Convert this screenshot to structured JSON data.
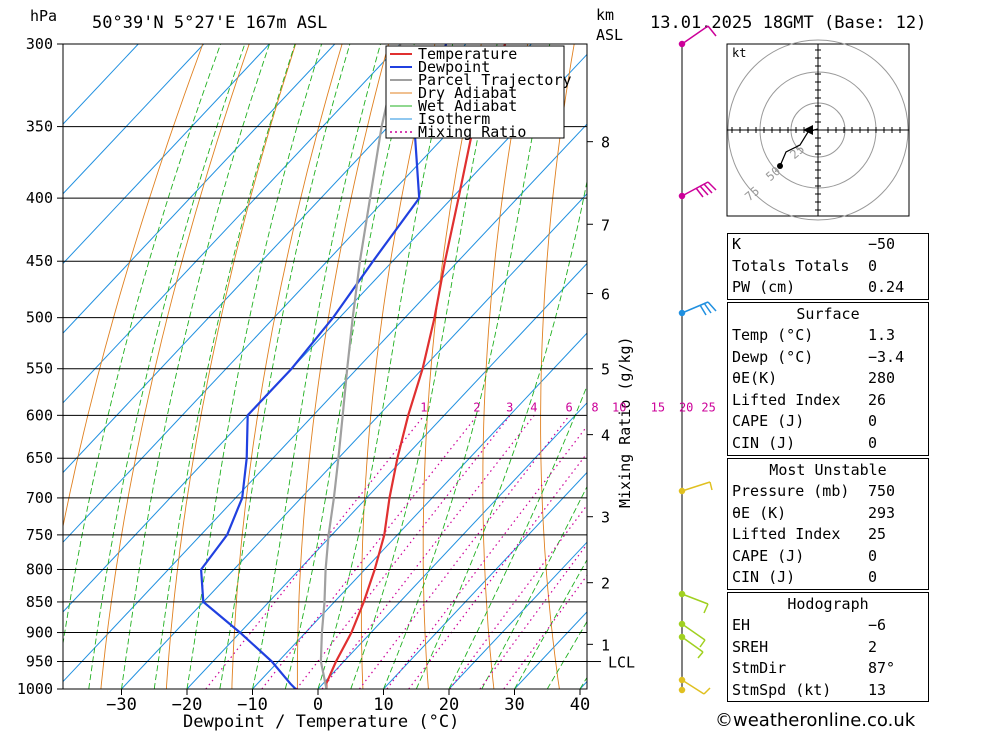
{
  "header": {
    "hpa_unit": "hPa",
    "location": "50°39'N  5°27'E  167m  ASL",
    "km_unit": "km",
    "asl_unit": "ASL",
    "datetime": "13.01.2025  18GMT  (Base: 12)"
  },
  "chart_data": {
    "type": "line",
    "title": "Skew-T log-P sounding",
    "xlabel": "Dewpoint / Temperature (°C)",
    "ylabel": "hPa",
    "right_label": "Mixing Ratio (g/kg)",
    "x_ticks": [
      "−30",
      "−20",
      "−10",
      "0",
      "10",
      "20",
      "30",
      "40"
    ],
    "x_tick_values": [
      -30,
      -20,
      -10,
      0,
      10,
      20,
      30,
      40
    ],
    "xlim": [
      -40,
      40
    ],
    "pressure_levels": [
      300,
      350,
      400,
      450,
      500,
      550,
      600,
      650,
      700,
      750,
      800,
      850,
      900,
      950,
      1000
    ],
    "pressure_labels": [
      "300",
      "350",
      "400",
      "450",
      "500",
      "550",
      "600",
      "650",
      "700",
      "750",
      "800",
      "850",
      "900",
      "950",
      "1000"
    ],
    "ylim": [
      1000,
      300
    ],
    "km_labels": [
      {
        "km": "8",
        "p": 360
      },
      {
        "km": "7",
        "p": 420
      },
      {
        "km": "6",
        "p": 478
      },
      {
        "km": "5",
        "p": 550
      },
      {
        "km": "4",
        "p": 622
      },
      {
        "km": "3",
        "p": 725
      },
      {
        "km": "2",
        "p": 820
      },
      {
        "km": "1",
        "p": 920
      }
    ],
    "lcl": {
      "label": "LCL",
      "p": 950
    },
    "mixing_ratio_labels": [
      "1",
      "2",
      "3",
      "4",
      "6",
      "8",
      "10",
      "15",
      "20",
      "25"
    ],
    "mixing_ratio_values": [
      1,
      2,
      3,
      4,
      6,
      8,
      10,
      15,
      20,
      25
    ],
    "legend": {
      "position": "top-right",
      "entries": [
        {
          "name": "Temperature",
          "color": "#e03030"
        },
        {
          "name": "Dewpoint",
          "color": "#2040e0"
        },
        {
          "name": "Parcel Trajectory",
          "color": "#a0a0a0"
        },
        {
          "name": "Dry Adiabat",
          "color": "#e08020"
        },
        {
          "name": "Wet Adiabat",
          "color": "#20b020"
        },
        {
          "name": "Isotherm",
          "color": "#2090e0"
        },
        {
          "name": "Mixing Ratio",
          "color": "#cc0099"
        }
      ]
    },
    "series": [
      {
        "name": "Temperature",
        "p": [
          1000,
          990,
          950,
          900,
          850,
          800,
          750,
          700,
          650,
          600,
          550,
          500,
          450,
          400,
          350,
          300
        ],
        "t": [
          1.3,
          0.5,
          -1.2,
          -3.0,
          -5.5,
          -8.5,
          -12.0,
          -16.5,
          -21.0,
          -25.5,
          -30.0,
          -35.5,
          -42.0,
          -49.0,
          -57.0,
          -64.0
        ]
      },
      {
        "name": "Dewpoint",
        "p": [
          1000,
          990,
          950,
          900,
          850,
          800,
          750,
          700,
          650,
          600,
          550,
          500,
          450,
          400,
          350,
          300
        ],
        "t": [
          -3.4,
          -5.0,
          -11.0,
          -20.0,
          -30.0,
          -35.0,
          -36.0,
          -39.0,
          -44.0,
          -50.0,
          -50.0,
          -51.0,
          -53.0,
          -55.0,
          -66.0,
          -73.0
        ]
      },
      {
        "name": "Parcel Trajectory",
        "p": [
          1000,
          950,
          900,
          850,
          800,
          750,
          700,
          650,
          600,
          550,
          500,
          450,
          400,
          350,
          300
        ],
        "t": [
          1.3,
          -3.5,
          -7.5,
          -11.5,
          -16.0,
          -20.5,
          -25.0,
          -30.0,
          -35.5,
          -41.5,
          -48.0,
          -55.0,
          -62.5,
          -71.0,
          -80.0
        ]
      }
    ]
  },
  "hodograph": {
    "unit": "kt",
    "ring_labels": [
      "25",
      "50",
      "75"
    ]
  },
  "indices": {
    "rows": [
      {
        "label": "K",
        "value": "−50"
      },
      {
        "label": "Totals Totals",
        "value": "0"
      },
      {
        "label": "PW (cm)",
        "value": "0.24"
      }
    ]
  },
  "surface": {
    "title": "Surface",
    "rows": [
      {
        "label": "Temp (°C)",
        "value": "1.3"
      },
      {
        "label": "Dewp (°C)",
        "value": "−3.4"
      },
      {
        "label": "θE(K)",
        "value": "280"
      },
      {
        "label": "Lifted Index",
        "value": "26"
      },
      {
        "label": "CAPE (J)",
        "value": "0"
      },
      {
        "label": "CIN (J)",
        "value": "0"
      }
    ]
  },
  "most_unstable": {
    "title": "Most Unstable",
    "rows": [
      {
        "label": "Pressure (mb)",
        "value": "750"
      },
      {
        "label": "θE (K)",
        "value": "293"
      },
      {
        "label": "Lifted Index",
        "value": "25"
      },
      {
        "label": "CAPE (J)",
        "value": "0"
      },
      {
        "label": "CIN (J)",
        "value": "0"
      }
    ]
  },
  "hodograph_table": {
    "title": "Hodograph",
    "rows": [
      {
        "label": "EH",
        "value": "−6"
      },
      {
        "label": "SREH",
        "value": "2"
      },
      {
        "label": "StmDir",
        "value": "87°"
      },
      {
        "label": "StmSpd (kt)",
        "value": "13"
      }
    ]
  },
  "footer": {
    "credit": "©weatheronline.co.uk"
  }
}
